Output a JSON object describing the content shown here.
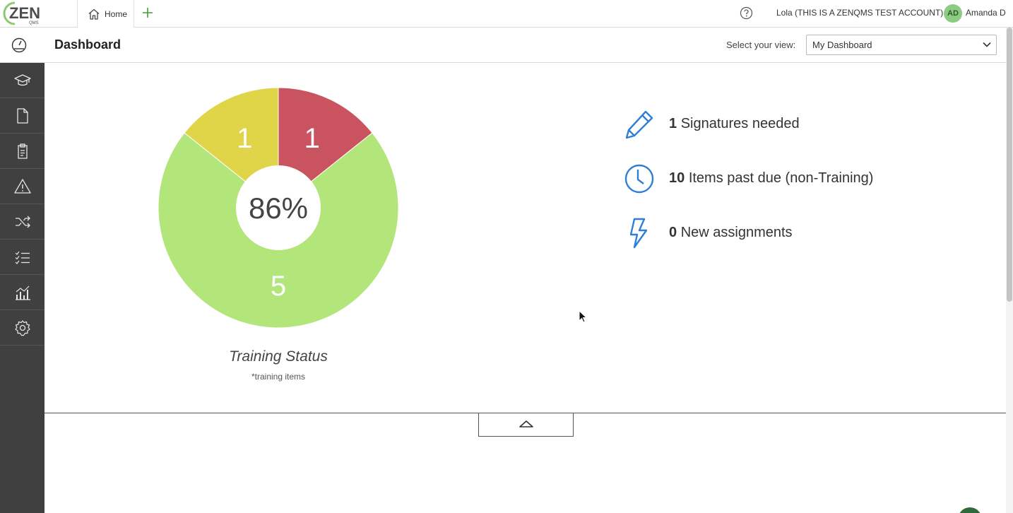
{
  "topbar": {
    "logo_text": "ZEN",
    "logo_sub": "QMS",
    "home_tab": "Home",
    "account_name": "Lola (THIS IS A ZENQMS TEST ACCOUNT)",
    "avatar_initials": "AD",
    "user_name": "Amanda D"
  },
  "header": {
    "title": "Dashboard",
    "view_label": "Select your view:",
    "view_selected": "My Dashboard"
  },
  "sidebar": {
    "items": [
      {
        "icon": "graduation-cap-icon",
        "name": "sidebar-item-training"
      },
      {
        "icon": "document-icon",
        "name": "sidebar-item-documents"
      },
      {
        "icon": "clipboard-icon",
        "name": "sidebar-item-audits"
      },
      {
        "icon": "warning-icon",
        "name": "sidebar-item-issues"
      },
      {
        "icon": "shuffle-icon",
        "name": "sidebar-item-change-control"
      },
      {
        "icon": "checklist-icon",
        "name": "sidebar-item-tasks"
      },
      {
        "icon": "analytics-icon",
        "name": "sidebar-item-reports"
      },
      {
        "icon": "gear-icon",
        "name": "sidebar-item-settings"
      }
    ]
  },
  "chart_data": {
    "type": "pie",
    "categories": [
      "",
      "",
      ""
    ],
    "values": [
      1,
      5,
      1
    ],
    "colors": [
      "#c9535f",
      "#b2e57a",
      "#e0d449"
    ],
    "center_label": "86%",
    "title": "Training Status",
    "subtitle": "*training items"
  },
  "stats": [
    {
      "number": "1",
      "label": "Signatures needed",
      "icon": "pencil-icon"
    },
    {
      "number": "10",
      "label": "Items past due (non-Training)",
      "icon": "clock-icon"
    },
    {
      "number": "0",
      "label": "New assignments",
      "icon": "lightning-icon"
    }
  ],
  "colors": {
    "accent_blue": "#2f7fd6",
    "sidebar_bg": "#404040",
    "brand_green": "#4a9c3a"
  }
}
